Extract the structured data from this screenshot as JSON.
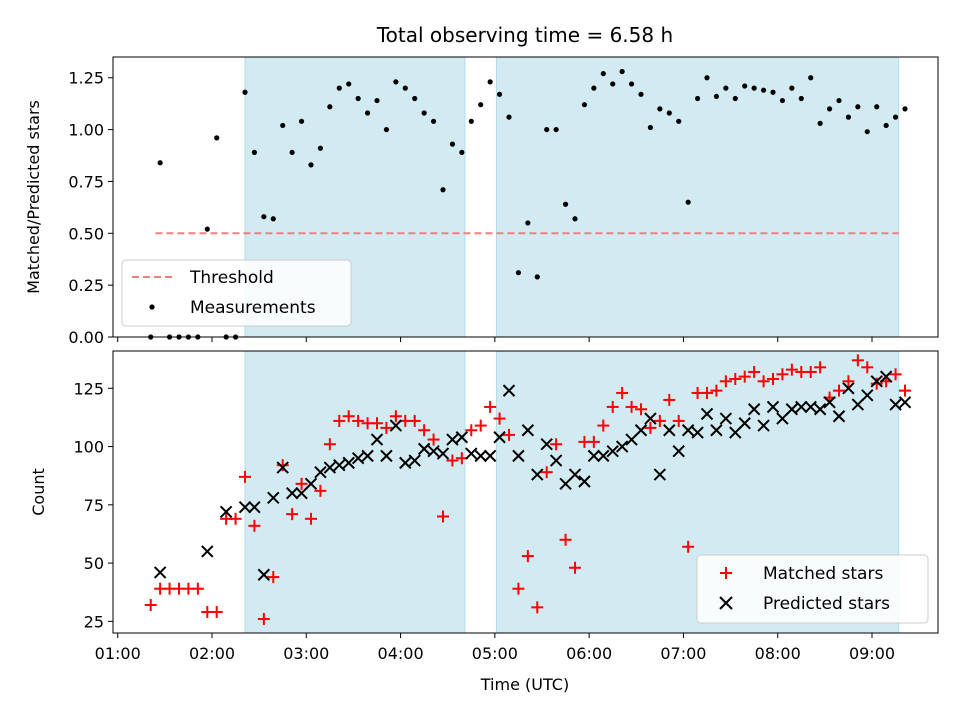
{
  "chart_data": [
    {
      "type": "scatter",
      "title": "Total observing time = 6.58 h",
      "xlabel": "",
      "ylabel": "Matched/Predicted stars",
      "xlim": [
        "00:57",
        "09:42"
      ],
      "ylim": [
        0,
        1.35
      ],
      "yticks": [
        "0.00",
        "0.25",
        "0.50",
        "0.75",
        "1.00",
        "1.25"
      ],
      "shaded_intervals": [
        [
          "02:21",
          "04:41"
        ],
        [
          "05:01",
          "09:17"
        ]
      ],
      "shade_color": "#add8e6",
      "threshold": {
        "name": "Threshold",
        "value": 0.5,
        "x_range": [
          "01:24",
          "09:17"
        ],
        "color": "#f08080",
        "style": "dashed"
      },
      "legend_position": "lower-left",
      "series": [
        {
          "name": "Measurements",
          "color": "#000000",
          "marker": "dot",
          "x": [
            "01:21",
            "01:27",
            "01:33",
            "01:39",
            "01:45",
            "01:51",
            "01:57",
            "02:03",
            "02:09",
            "02:15",
            "02:21",
            "02:27",
            "02:33",
            "02:39",
            "02:45",
            "02:51",
            "02:57",
            "03:03",
            "03:09",
            "03:15",
            "03:21",
            "03:27",
            "03:33",
            "03:39",
            "03:45",
            "03:51",
            "03:57",
            "04:03",
            "04:09",
            "04:15",
            "04:21",
            "04:27",
            "04:33",
            "04:39",
            "04:45",
            "04:51",
            "04:57",
            "05:03",
            "05:09",
            "05:15",
            "05:21",
            "05:27",
            "05:33",
            "05:39",
            "05:45",
            "05:51",
            "05:57",
            "06:03",
            "06:09",
            "06:15",
            "06:21",
            "06:27",
            "06:33",
            "06:39",
            "06:45",
            "06:51",
            "06:57",
            "07:03",
            "07:09",
            "07:15",
            "07:21",
            "07:27",
            "07:33",
            "07:39",
            "07:45",
            "07:51",
            "07:57",
            "08:03",
            "08:09",
            "08:15",
            "08:21",
            "08:27",
            "08:33",
            "08:39",
            "08:45",
            "08:51",
            "08:57",
            "09:03",
            "09:09",
            "09:15",
            "09:21"
          ],
          "y": [
            0.0,
            0.84,
            0.0,
            0.0,
            0.0,
            0.0,
            0.52,
            0.96,
            0.0,
            0.0,
            1.18,
            0.89,
            0.58,
            0.57,
            1.02,
            0.89,
            1.04,
            0.83,
            0.91,
            1.11,
            1.2,
            1.22,
            1.15,
            1.08,
            1.14,
            1.0,
            1.23,
            1.2,
            1.15,
            1.08,
            1.04,
            0.71,
            0.93,
            0.89,
            1.04,
            1.12,
            1.23,
            1.17,
            1.06,
            0.31,
            0.55,
            0.29,
            1.0,
            1.0,
            0.64,
            0.57,
            1.12,
            1.2,
            1.27,
            1.22,
            1.28,
            1.22,
            1.17,
            1.01,
            1.1,
            1.08,
            1.04,
            0.65,
            1.15,
            1.25,
            1.16,
            1.2,
            1.15,
            1.21,
            1.2,
            1.19,
            1.18,
            1.14,
            1.2,
            1.15,
            1.25,
            1.03,
            1.1,
            1.14,
            1.06,
            1.11,
            0.99,
            1.11,
            1.02,
            1.06,
            1.1
          ]
        }
      ]
    },
    {
      "type": "scatter",
      "title": "",
      "xlabel": "Time (UTC)",
      "ylabel": "Count",
      "xlim": [
        "00:57",
        "09:42"
      ],
      "ylim": [
        20,
        141
      ],
      "xticks": [
        "01:00",
        "02:00",
        "03:00",
        "04:00",
        "05:00",
        "06:00",
        "07:00",
        "08:00",
        "09:00"
      ],
      "yticks": [
        "25",
        "50",
        "75",
        "100",
        "125"
      ],
      "shaded_intervals": [
        [
          "02:21",
          "04:41"
        ],
        [
          "05:01",
          "09:17"
        ]
      ],
      "shade_color": "#add8e6",
      "legend_position": "lower-right",
      "series": [
        {
          "name": "Matched stars",
          "color": "#ff0000",
          "marker": "plus",
          "x": [
            "01:21",
            "01:27",
            "01:33",
            "01:39",
            "01:45",
            "01:51",
            "01:57",
            "02:03",
            "02:09",
            "02:15",
            "02:21",
            "02:27",
            "02:33",
            "02:39",
            "02:45",
            "02:51",
            "02:57",
            "03:03",
            "03:09",
            "03:15",
            "03:21",
            "03:27",
            "03:33",
            "03:39",
            "03:45",
            "03:51",
            "03:57",
            "04:03",
            "04:09",
            "04:15",
            "04:21",
            "04:27",
            "04:33",
            "04:39",
            "04:45",
            "04:51",
            "04:57",
            "05:03",
            "05:09",
            "05:15",
            "05:21",
            "05:27",
            "05:33",
            "05:39",
            "05:45",
            "05:51",
            "05:57",
            "06:03",
            "06:09",
            "06:15",
            "06:21",
            "06:27",
            "06:33",
            "06:39",
            "06:45",
            "06:51",
            "06:57",
            "07:03",
            "07:09",
            "07:15",
            "07:21",
            "07:27",
            "07:33",
            "07:39",
            "07:45",
            "07:51",
            "07:57",
            "08:03",
            "08:09",
            "08:15",
            "08:21",
            "08:27",
            "08:33",
            "08:39",
            "08:45",
            "08:51",
            "08:57",
            "09:03",
            "09:09",
            "09:15",
            "09:21"
          ],
          "y": [
            32,
            39,
            39,
            39,
            39,
            39,
            29,
            29,
            69,
            69,
            87,
            66,
            26,
            44,
            92,
            71,
            84,
            69,
            81,
            101,
            111,
            113,
            111,
            110,
            110,
            108,
            113,
            111,
            111,
            107,
            103,
            70,
            94,
            95,
            107,
            109,
            117,
            112,
            105,
            39,
            53,
            31,
            89,
            101,
            60,
            48,
            102,
            102,
            109,
            117,
            123,
            117,
            116,
            108,
            111,
            120,
            111,
            57,
            123,
            123,
            124,
            128,
            129,
            130,
            132,
            128,
            129,
            131,
            133,
            132,
            132,
            134,
            121,
            124,
            128,
            137,
            134,
            127,
            128,
            131,
            124
          ]
        },
        {
          "name": "Predicted stars",
          "color": "#000000",
          "marker": "x",
          "x": [
            "01:27",
            "01:57",
            "02:09",
            "02:21",
            "02:27",
            "02:33",
            "02:39",
            "02:45",
            "02:51",
            "02:57",
            "03:03",
            "03:09",
            "03:15",
            "03:21",
            "03:27",
            "03:33",
            "03:39",
            "03:45",
            "03:51",
            "03:57",
            "04:03",
            "04:09",
            "04:15",
            "04:21",
            "04:27",
            "04:33",
            "04:39",
            "04:45",
            "04:51",
            "04:57",
            "05:03",
            "05:09",
            "05:15",
            "05:21",
            "05:27",
            "05:33",
            "05:39",
            "05:45",
            "05:51",
            "05:57",
            "06:03",
            "06:09",
            "06:15",
            "06:21",
            "06:27",
            "06:33",
            "06:39",
            "06:45",
            "06:51",
            "06:57",
            "07:03",
            "07:09",
            "07:15",
            "07:21",
            "07:27",
            "07:33",
            "07:39",
            "07:45",
            "07:51",
            "07:57",
            "08:03",
            "08:09",
            "08:15",
            "08:21",
            "08:27",
            "08:33",
            "08:39",
            "08:45",
            "08:51",
            "08:57",
            "09:03",
            "09:09",
            "09:15",
            "09:21"
          ],
          "y": [
            46,
            55,
            72,
            74,
            74,
            45,
            78,
            91,
            80,
            80,
            84,
            89,
            91,
            92,
            93,
            95,
            96,
            103,
            96,
            109,
            93,
            94,
            99,
            98,
            97,
            103,
            104,
            97,
            96,
            96,
            104,
            124,
            96,
            107,
            88,
            101,
            94,
            84,
            88,
            85,
            96,
            96,
            98,
            100,
            103,
            107,
            112,
            88,
            107,
            98,
            107,
            106,
            114,
            107,
            112,
            106,
            110,
            116,
            109,
            117,
            112,
            116,
            117,
            117,
            116,
            119,
            113,
            125,
            118,
            122,
            128,
            130,
            118,
            119
          ]
        }
      ]
    }
  ]
}
